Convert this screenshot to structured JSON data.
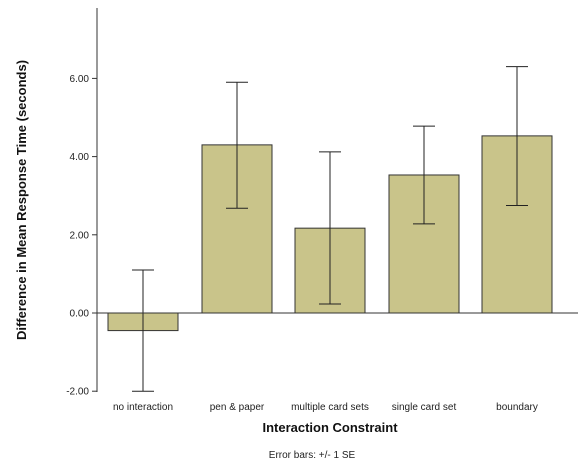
{
  "chart_data": {
    "type": "bar",
    "categories": [
      "no interaction",
      "pen & paper",
      "multiple card sets",
      "single card set",
      "boundary"
    ],
    "values": [
      -0.45,
      4.3,
      2.17,
      3.53,
      4.53
    ],
    "error_low": [
      -2.0,
      2.68,
      0.23,
      2.28,
      2.75
    ],
    "error_high": [
      1.1,
      5.9,
      4.12,
      4.78,
      6.3
    ],
    "ylim": [
      -2.0,
      7.5
    ],
    "yticks": [
      "-2.00",
      "0.00",
      "2.00",
      "4.00",
      "6.00"
    ],
    "xlabel": "Interaction Constraint",
    "ylabel": "Difference in Mean Response Time (seconds)",
    "footnote": "Error bars: +/- 1 SE",
    "bar_color": "#c9c48a",
    "grid": false
  }
}
